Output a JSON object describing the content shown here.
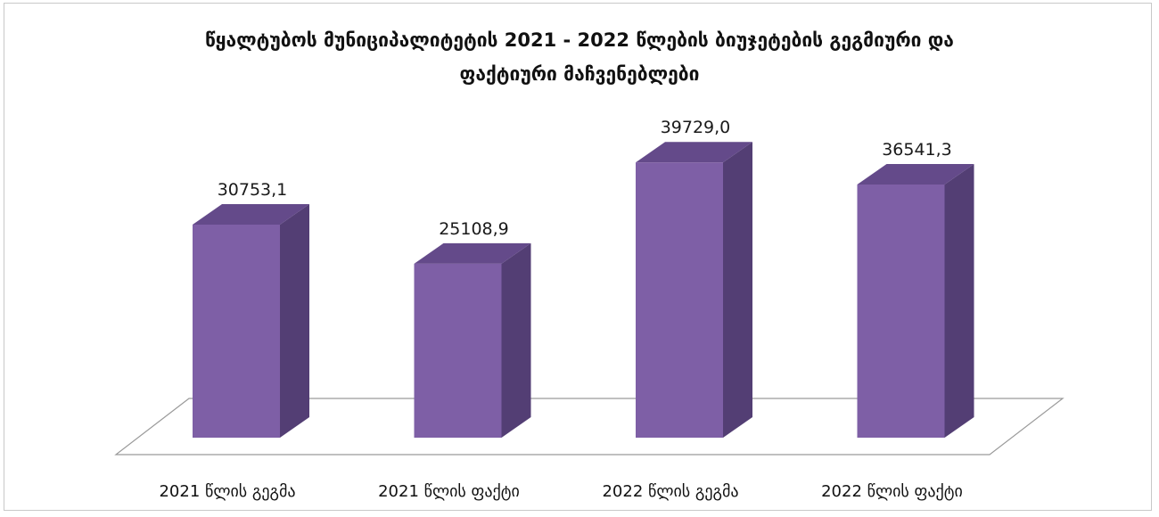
{
  "chart_data": {
    "type": "bar",
    "title_lines": [
      "წყალტუბოს მუნიციპალიტეტის 2021 - 2022 წლების ბიუჯეტების გეგმიური და",
      "ფაქტიური მაჩვენებლები"
    ],
    "categories": [
      "2021 წლის გეგმა",
      "2021 წლის ფაქტი",
      "2022 წლის გეგმა",
      "2022 წლის ფაქტი"
    ],
    "values": [
      30753.1,
      25108.9,
      39729.0,
      36541.3
    ],
    "value_labels": [
      "30753,1",
      "25108,9",
      "39729,0",
      "36541,3"
    ],
    "ylim": [
      0,
      45000
    ],
    "grid": false,
    "legend": "none",
    "style": "3d-column",
    "colors": {
      "front": "#7e5fa6",
      "side": "#533e74",
      "top": "#644a8a",
      "floor_line": "#9a9a9a"
    }
  }
}
